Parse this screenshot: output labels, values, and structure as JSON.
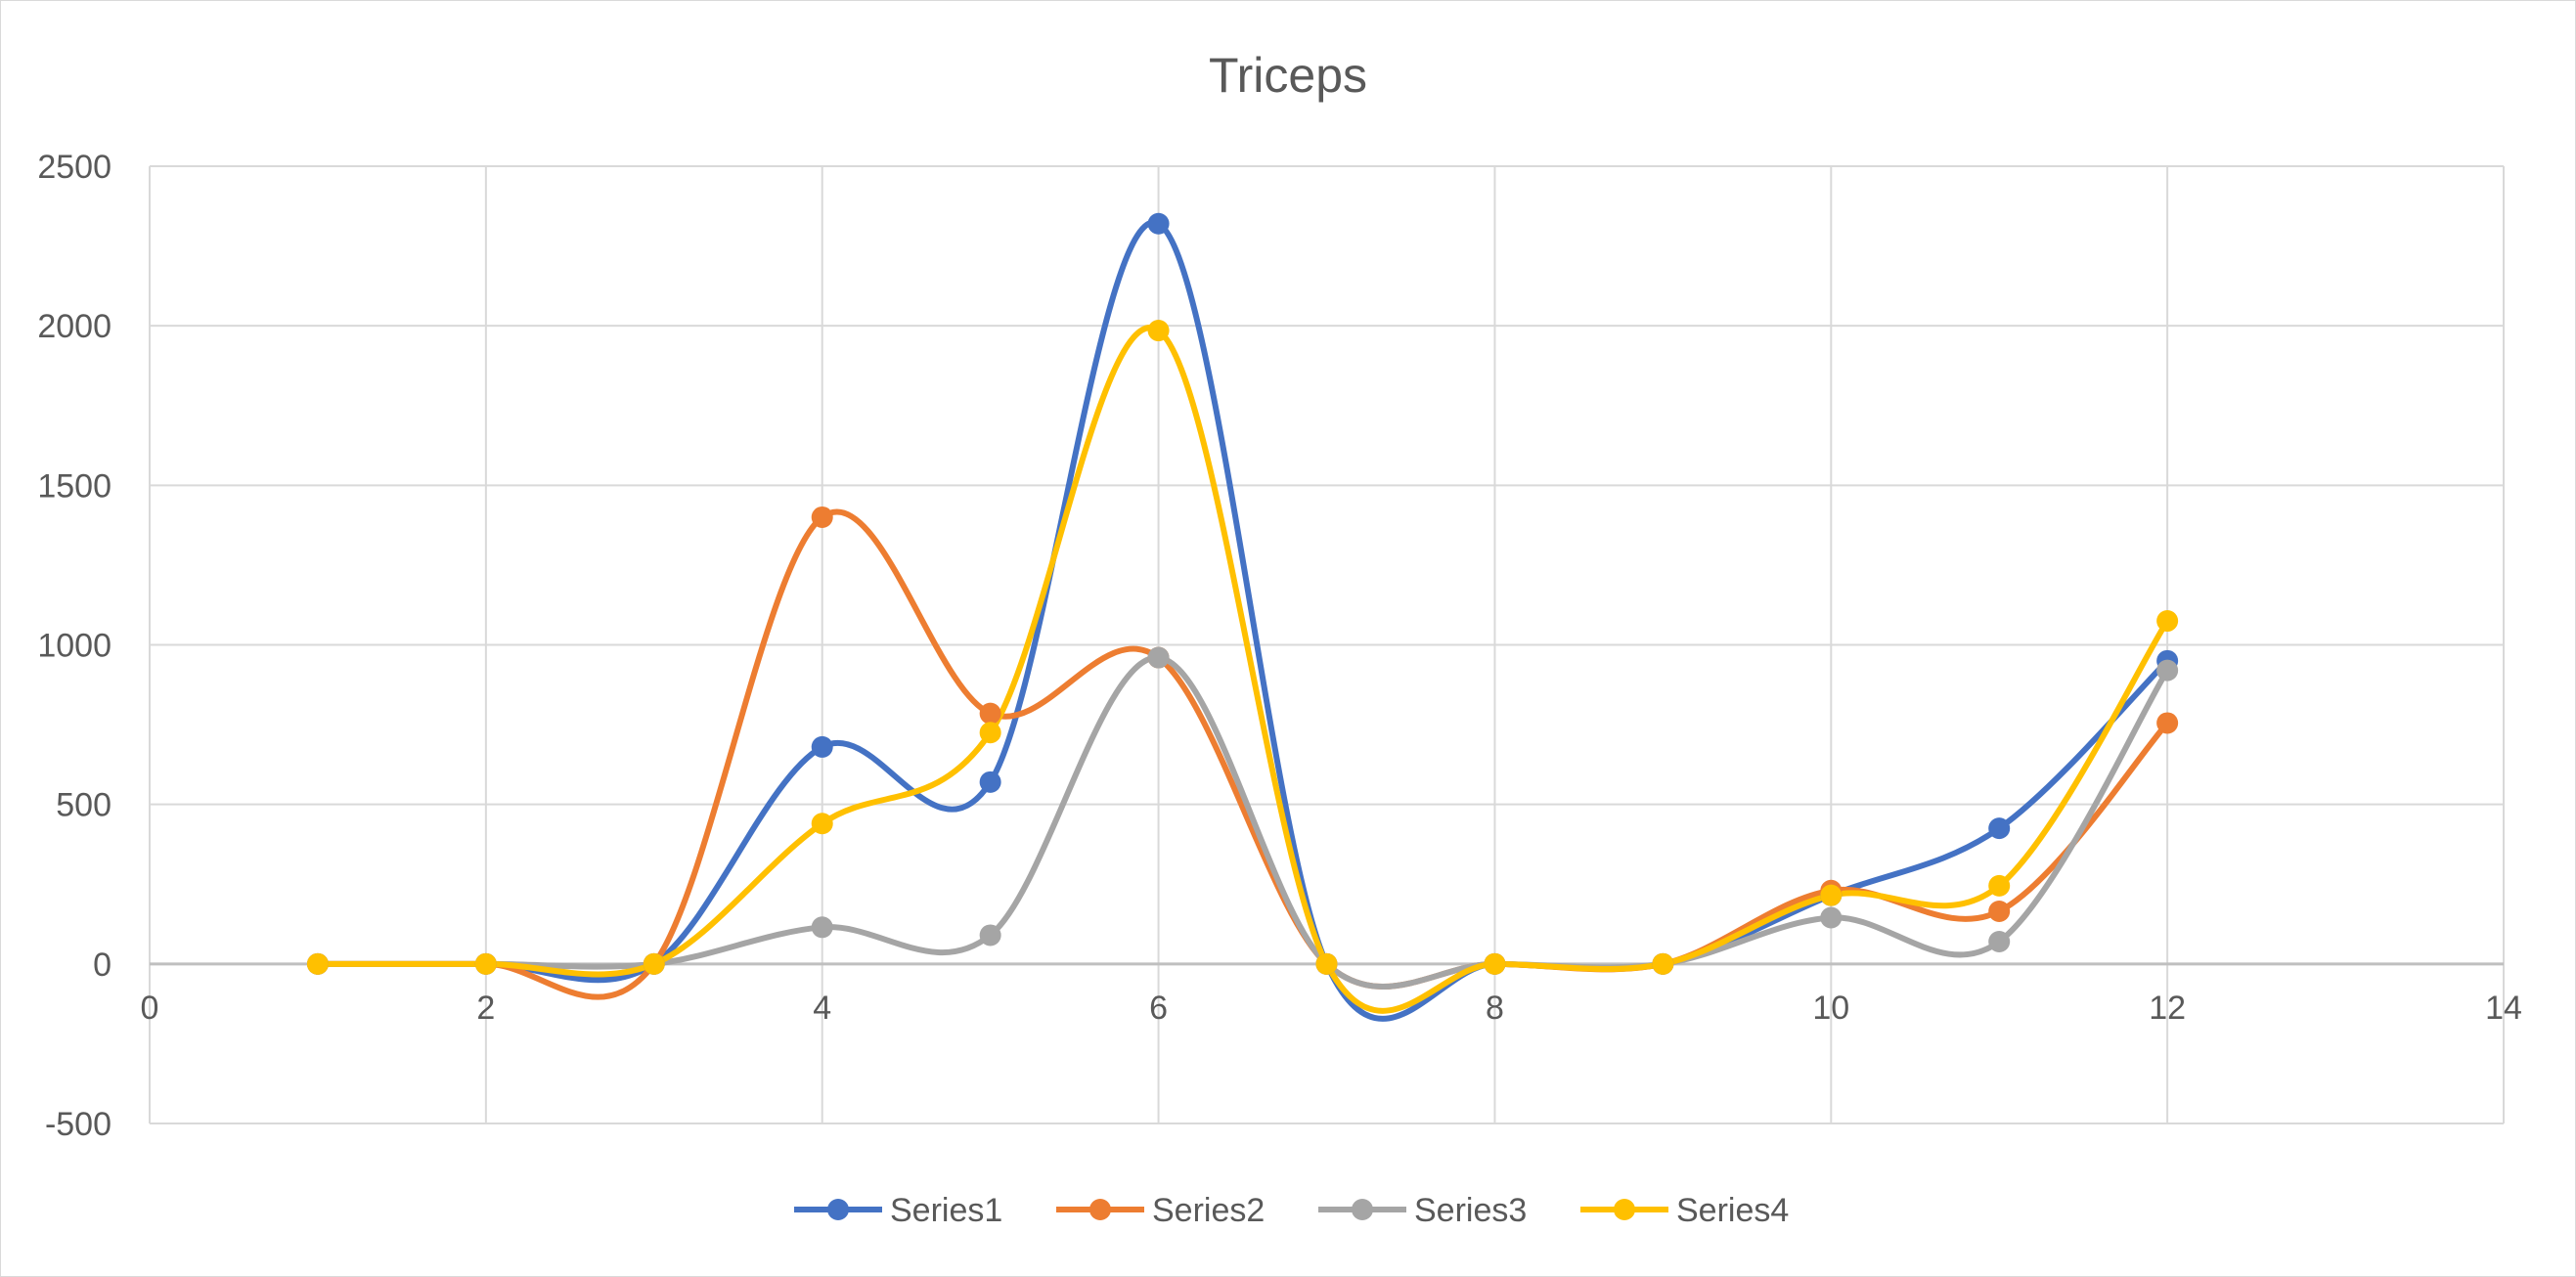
{
  "chart_data": {
    "type": "scatter",
    "title": "Triceps",
    "xlabel": "",
    "ylabel": "",
    "xlim": [
      0,
      14
    ],
    "ylim": [
      -500,
      2500
    ],
    "x_ticks": [
      0,
      2,
      4,
      6,
      8,
      10,
      12,
      14
    ],
    "y_ticks": [
      -500,
      0,
      500,
      1000,
      1500,
      2000,
      2500
    ],
    "grid": true,
    "smooth_lines": true,
    "legend_position": "bottom",
    "x": [
      1,
      2,
      3,
      4,
      5,
      6,
      7,
      8,
      9,
      10,
      11,
      12
    ],
    "series": [
      {
        "name": "Series1",
        "color": "#4472C4",
        "values": [
          0,
          0,
          0,
          680,
          570,
          2320,
          0,
          0,
          0,
          215,
          425,
          950
        ]
      },
      {
        "name": "Series2",
        "color": "#ED7D31",
        "values": [
          0,
          0,
          0,
          1400,
          785,
          960,
          0,
          0,
          0,
          230,
          165,
          755
        ]
      },
      {
        "name": "Series3",
        "color": "#A5A5A5",
        "values": [
          0,
          0,
          0,
          115,
          90,
          960,
          0,
          0,
          0,
          145,
          70,
          920
        ]
      },
      {
        "name": "Series4",
        "color": "#FFC000",
        "values": [
          0,
          0,
          0,
          440,
          725,
          1985,
          0,
          0,
          0,
          215,
          245,
          1075
        ]
      }
    ]
  }
}
